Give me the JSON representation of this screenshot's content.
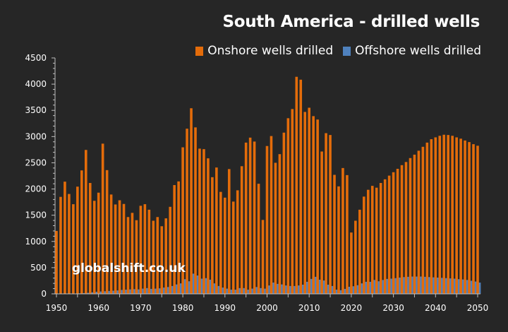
{
  "chart_data": {
    "type": "bar",
    "stacked": false,
    "overlapping": true,
    "title": "South America - drilled wells",
    "xlabel": "",
    "ylabel": "",
    "ylim": [
      0,
      4500
    ],
    "yticks": [
      0,
      500,
      1000,
      1500,
      2000,
      2500,
      3000,
      3500,
      4000,
      4500
    ],
    "xlim": [
      1950,
      2050
    ],
    "xticks": [
      1950,
      1960,
      1970,
      1980,
      1990,
      2000,
      2010,
      2020,
      2030,
      2040,
      2050
    ],
    "grid": false,
    "legend_position": "top-right",
    "watermark": "globalshift.co.uk",
    "colors": {
      "onshore": "#E46C0A",
      "offshore": "#4F81BD",
      "background": "#262626",
      "axis": "#BFBFBF",
      "text": "#FFFFFF"
    },
    "x": [
      1950,
      1951,
      1952,
      1953,
      1954,
      1955,
      1956,
      1957,
      1958,
      1959,
      1960,
      1961,
      1962,
      1963,
      1964,
      1965,
      1966,
      1967,
      1968,
      1969,
      1970,
      1971,
      1972,
      1973,
      1974,
      1975,
      1976,
      1977,
      1978,
      1979,
      1980,
      1981,
      1982,
      1983,
      1984,
      1985,
      1986,
      1987,
      1988,
      1989,
      1990,
      1991,
      1992,
      1993,
      1994,
      1995,
      1996,
      1997,
      1998,
      1999,
      2000,
      2001,
      2002,
      2003,
      2004,
      2005,
      2006,
      2007,
      2008,
      2009,
      2010,
      2011,
      2012,
      2013,
      2014,
      2015,
      2016,
      2017,
      2018,
      2019,
      2020,
      2021,
      2022,
      2023,
      2024,
      2025,
      2026,
      2027,
      2028,
      2029,
      2030,
      2031,
      2032,
      2033,
      2034,
      2035,
      2036,
      2037,
      2038,
      2039,
      2040,
      2041,
      2042,
      2043,
      2044,
      2045,
      2046,
      2047,
      2048,
      2049,
      2050
    ],
    "series": [
      {
        "name": "Onshore wells drilled",
        "key": "onshore",
        "values": [
          1200,
          1850,
          2140,
          1905,
          1710,
          2045,
          2355,
          2745,
          2115,
          1775,
          1930,
          2865,
          2360,
          1895,
          1705,
          1785,
          1715,
          1465,
          1545,
          1405,
          1680,
          1710,
          1605,
          1395,
          1465,
          1290,
          1440,
          1660,
          2075,
          2145,
          2795,
          3150,
          3540,
          3175,
          2770,
          2760,
          2585,
          2225,
          2410,
          1945,
          1835,
          2380,
          1760,
          1975,
          2435,
          2885,
          2980,
          2905,
          2100,
          1410,
          2820,
          3010,
          2500,
          2665,
          3075,
          3350,
          3525,
          4140,
          4085,
          3470,
          3550,
          3390,
          3325,
          2715,
          3065,
          3030,
          2270,
          2050,
          2400,
          2265,
          1170,
          1395,
          1605,
          1855,
          1985,
          2060,
          2025,
          2115,
          2185,
          2255,
          2320,
          2385,
          2455,
          2515,
          2590,
          2655,
          2730,
          2805,
          2885,
          2950,
          2985,
          3015,
          3035,
          3030,
          3015,
          2985,
          2960,
          2925,
          2895,
          2855,
          2825
        ]
      },
      {
        "name": "Offshore wells drilled",
        "key": "offshore",
        "values": [
          0,
          0,
          0,
          5,
          5,
          10,
          15,
          20,
          30,
          40,
          45,
          50,
          55,
          60,
          65,
          75,
          80,
          85,
          90,
          85,
          100,
          110,
          95,
          100,
          105,
          120,
          130,
          150,
          180,
          200,
          280,
          240,
          385,
          350,
          290,
          300,
          270,
          200,
          150,
          120,
          100,
          80,
          80,
          110,
          110,
          80,
          100,
          130,
          110,
          100,
          160,
          215,
          190,
          180,
          160,
          150,
          150,
          160,
          175,
          230,
          285,
          325,
          270,
          255,
          175,
          150,
          80,
          70,
          95,
          135,
          145,
          165,
          200,
          230,
          230,
          265,
          240,
          265,
          285,
          290,
          300,
          310,
          320,
          325,
          330,
          330,
          330,
          325,
          320,
          315,
          310,
          305,
          300,
          295,
          290,
          280,
          275,
          265,
          250,
          235,
          215
        ]
      }
    ]
  }
}
